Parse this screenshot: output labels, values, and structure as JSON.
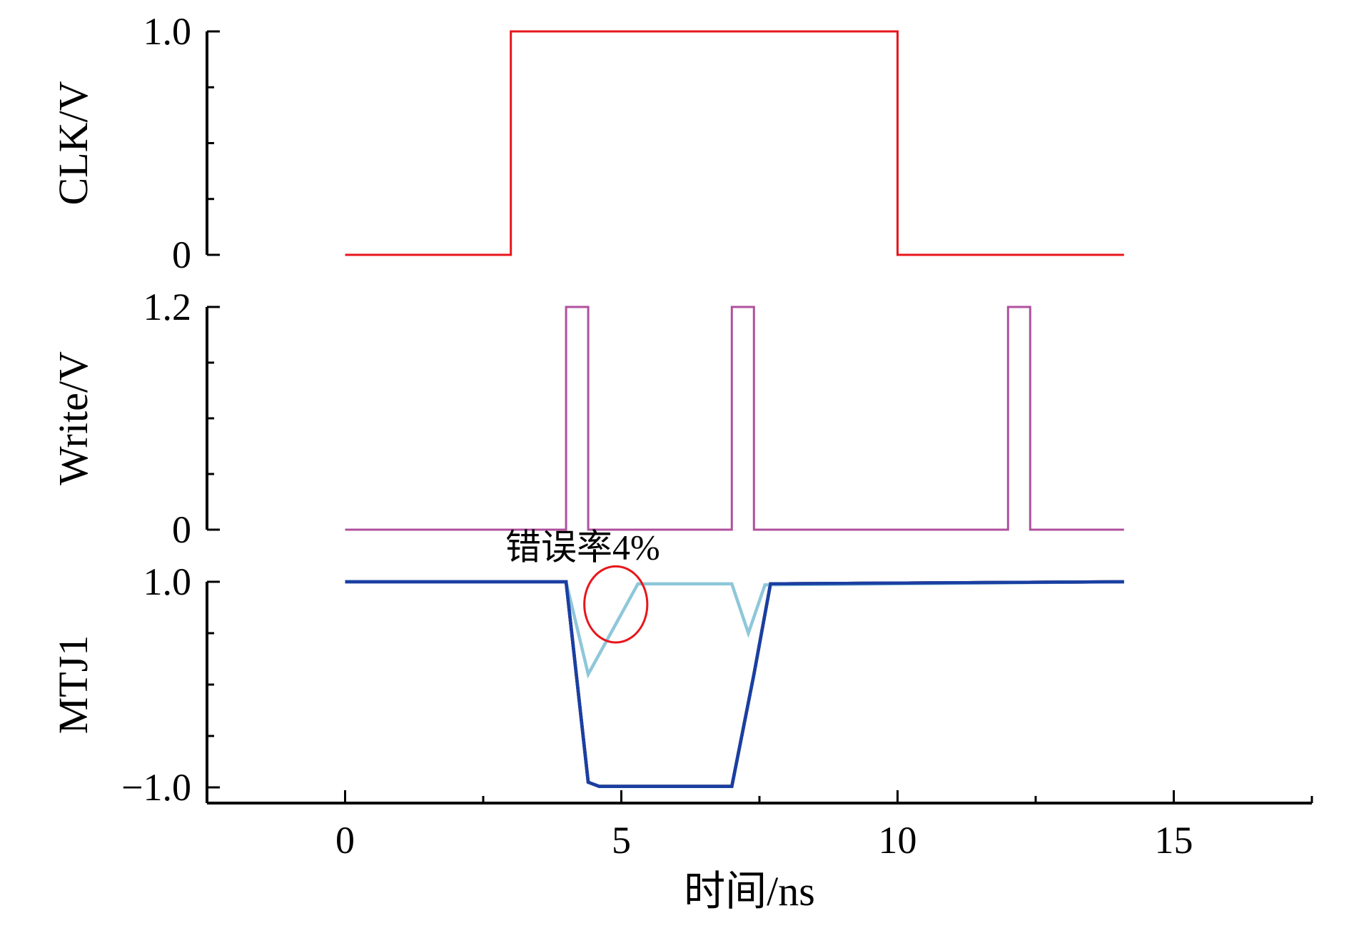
{
  "chart_data": {
    "type": "line",
    "xlabel": "时间/ns",
    "xlim": [
      -2.5,
      17.5
    ],
    "xticks": [
      0,
      5,
      10,
      15
    ],
    "xtick_labels": [
      "0",
      "5",
      "10",
      "15"
    ],
    "panels": [
      {
        "id": "clk",
        "ylabel": "CLK/V",
        "ylim": [
          0,
          1.0
        ],
        "yticks": [
          0,
          1.0
        ],
        "ytick_labels": [
          "0",
          "1.0"
        ],
        "color": "#e8161b",
        "series": [
          {
            "x": [
              0,
              3,
              3,
              10,
              10,
              14.1
            ],
            "y": [
              0,
              0,
              1,
              1,
              0,
              0
            ]
          }
        ]
      },
      {
        "id": "write",
        "ylabel": "Write/V",
        "ylim": [
          0,
          1.2
        ],
        "yticks": [
          0,
          1.2
        ],
        "ytick_labels": [
          "0",
          "1.2"
        ],
        "color": "#b0519e",
        "series": [
          {
            "x": [
              0,
              4.0,
              4.0,
              4.4,
              4.4,
              7.0,
              7.0,
              7.4,
              7.4,
              12.0,
              12.0,
              12.4,
              12.4,
              14.1
            ],
            "y": [
              0,
              0,
              1.2,
              1.2,
              0,
              0,
              1.2,
              1.2,
              0,
              0,
              1.2,
              1.2,
              0,
              0
            ]
          }
        ]
      },
      {
        "id": "mtj1",
        "ylabel": "MTJ1",
        "ylim": [
          -1.0,
          1.0
        ],
        "yticks": [
          -1.0,
          1.0
        ],
        "ytick_labels": [
          "−1.0",
          "1.0"
        ],
        "series_colors": [
          "#e8161b",
          "#2ca02c",
          "#ff7f0e",
          "#7f1f7f",
          "#1f77b4",
          "#8ec7da",
          "#1a3fa3"
        ],
        "series": [
          {
            "x": [
              0,
              4.0,
              4.4,
              4.6,
              7.0,
              7.4,
              7.7,
              14.1
            ],
            "y": [
              1.0,
              1.0,
              -0.95,
              -0.99,
              -0.99,
              0.1,
              0.98,
              1.0
            ]
          },
          {
            "x": [
              0,
              4.0,
              4.4,
              4.6,
              7.0,
              7.4,
              7.7,
              14.1
            ],
            "y": [
              1.0,
              1.0,
              -0.95,
              -0.99,
              -0.99,
              0.1,
              0.98,
              1.0
            ]
          },
          {
            "x": [
              0,
              4.0,
              4.4,
              4.6,
              7.0,
              7.4,
              7.7,
              14.1
            ],
            "y": [
              1.0,
              1.0,
              -0.95,
              -0.99,
              -0.99,
              0.1,
              0.98,
              1.0
            ]
          },
          {
            "x": [
              0,
              4.0,
              4.4,
              4.6,
              7.0,
              7.4,
              7.7,
              14.1
            ],
            "y": [
              1.0,
              1.0,
              -0.95,
              -0.99,
              -0.99,
              0.1,
              0.98,
              1.0
            ]
          },
          {
            "x": [
              0,
              4.0,
              4.4,
              4.6,
              7.0,
              7.4,
              7.7,
              14.1
            ],
            "y": [
              1.0,
              1.0,
              -0.95,
              -0.99,
              -0.99,
              0.1,
              0.98,
              1.0
            ]
          },
          {
            "x": [
              0,
              4.0,
              4.4,
              5.3,
              7.0,
              7.3,
              7.6,
              14.1
            ],
            "y": [
              1.0,
              1.0,
              0.1,
              0.98,
              0.98,
              0.5,
              0.97,
              1.0
            ]
          },
          {
            "x": [
              0,
              4.0,
              4.4,
              4.6,
              7.0,
              7.4,
              7.7,
              14.1
            ],
            "y": [
              1.0,
              1.0,
              -0.95,
              -0.99,
              -0.99,
              0.1,
              0.98,
              1.0
            ]
          }
        ],
        "annotations": [
          {
            "text": "错误率4%",
            "x": 2.9,
            "y": 1.22
          }
        ],
        "highlight_circle": {
          "x": 4.9,
          "y": 0.78,
          "rx": 0.57,
          "ry": 0.37,
          "color": "#e8161b"
        }
      }
    ]
  }
}
